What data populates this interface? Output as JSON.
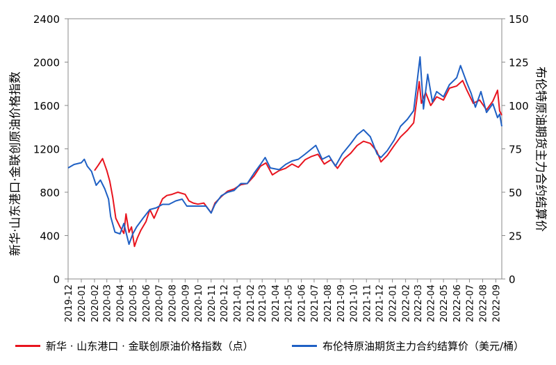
{
  "chart_data": {
    "type": "line",
    "title": "",
    "left_axis_label": "新华·山东港口·金联创原油价格指数",
    "right_axis_label": "布伦特原油期货主力合约结算价",
    "x_ticks": [
      "2019-12",
      "2020-01",
      "2020-02",
      "2020-03",
      "2020-04",
      "2020-05",
      "2020-06",
      "2020-07",
      "2020-08",
      "2020-09",
      "2020-10",
      "2020-11",
      "2020-12",
      "2021-01",
      "2021-02",
      "2021-03",
      "2021-04",
      "2021-05",
      "2021-06",
      "2021-07",
      "2021-08",
      "2021-09",
      "2021-10",
      "2021-11",
      "2021-12",
      "2022-01",
      "2022-02",
      "2022-03",
      "2022-04",
      "2022-05",
      "2022-06",
      "2022-07",
      "2022-08",
      "2022-09"
    ],
    "y_left_ticks": [
      "0",
      "400",
      "800",
      "1200",
      "1600",
      "2000",
      "2400"
    ],
    "y_left_range": [
      0,
      2400
    ],
    "y_right_ticks": [
      "0",
      "25",
      "50",
      "75",
      "100",
      "125",
      "150"
    ],
    "y_right_range": [
      0,
      150
    ],
    "grid": false,
    "legend_position": "bottom",
    "series": [
      {
        "name": "新华 · 山东港口 · 金联创原油价格指数（点）",
        "color": "#e8141e",
        "axis": "left",
        "points": [
          [
            "2020-02-01",
            1000
          ],
          [
            "2020-02-10",
            1050
          ],
          [
            "2020-02-20",
            1110
          ],
          [
            "2020-03-01",
            1000
          ],
          [
            "2020-03-08",
            900
          ],
          [
            "2020-03-15",
            750
          ],
          [
            "2020-03-22",
            560
          ],
          [
            "2020-04-01",
            480
          ],
          [
            "2020-04-10",
            420
          ],
          [
            "2020-04-15",
            600
          ],
          [
            "2020-04-22",
            430
          ],
          [
            "2020-04-28",
            480
          ],
          [
            "2020-05-05",
            300
          ],
          [
            "2020-05-12",
            380
          ],
          [
            "2020-05-20",
            450
          ],
          [
            "2020-06-01",
            530
          ],
          [
            "2020-06-10",
            640
          ],
          [
            "2020-06-20",
            560
          ],
          [
            "2020-07-01",
            660
          ],
          [
            "2020-07-10",
            740
          ],
          [
            "2020-07-20",
            770
          ],
          [
            "2020-08-01",
            780
          ],
          [
            "2020-08-15",
            800
          ],
          [
            "2020-09-01",
            780
          ],
          [
            "2020-09-10",
            720
          ],
          [
            "2020-09-20",
            700
          ],
          [
            "2020-10-01",
            690
          ],
          [
            "2020-10-15",
            700
          ],
          [
            "2020-11-01",
            610
          ],
          [
            "2020-11-10",
            700
          ],
          [
            "2020-11-25",
            760
          ],
          [
            "2020-12-10",
            810
          ],
          [
            "2020-12-25",
            830
          ],
          [
            "2021-01-10",
            870
          ],
          [
            "2021-01-25",
            880
          ],
          [
            "2021-02-10",
            950
          ],
          [
            "2021-02-25",
            1040
          ],
          [
            "2021-03-10",
            1070
          ],
          [
            "2021-03-25",
            960
          ],
          [
            "2021-04-10",
            1000
          ],
          [
            "2021-04-25",
            1020
          ],
          [
            "2021-05-10",
            1060
          ],
          [
            "2021-05-25",
            1030
          ],
          [
            "2021-06-10",
            1100
          ],
          [
            "2021-06-25",
            1130
          ],
          [
            "2021-07-10",
            1150
          ],
          [
            "2021-07-25",
            1060
          ],
          [
            "2021-08-10",
            1100
          ],
          [
            "2021-08-25",
            1020
          ],
          [
            "2021-09-10",
            1110
          ],
          [
            "2021-09-25",
            1160
          ],
          [
            "2021-10-10",
            1230
          ],
          [
            "2021-10-25",
            1270
          ],
          [
            "2021-11-10",
            1250
          ],
          [
            "2021-11-25",
            1180
          ],
          [
            "2021-12-05",
            1080
          ],
          [
            "2021-12-20",
            1140
          ],
          [
            "2022-01-05",
            1230
          ],
          [
            "2022-01-20",
            1310
          ],
          [
            "2022-02-05",
            1370
          ],
          [
            "2022-02-20",
            1440
          ],
          [
            "2022-03-05",
            1820
          ],
          [
            "2022-03-10",
            1620
          ],
          [
            "2022-03-20",
            1720
          ],
          [
            "2022-04-01",
            1600
          ],
          [
            "2022-04-15",
            1680
          ],
          [
            "2022-05-01",
            1650
          ],
          [
            "2022-05-15",
            1760
          ],
          [
            "2022-06-01",
            1780
          ],
          [
            "2022-06-15",
            1830
          ],
          [
            "2022-06-25",
            1740
          ],
          [
            "2022-07-10",
            1620
          ],
          [
            "2022-07-25",
            1650
          ],
          [
            "2022-08-10",
            1560
          ],
          [
            "2022-08-25",
            1640
          ],
          [
            "2022-09-05",
            1740
          ],
          [
            "2022-09-10",
            1550
          ],
          [
            "2022-09-15",
            1510
          ]
        ]
      },
      {
        "name": "布伦特原油期货主力合约结算价（美元/桶）",
        "color": "#1f60c4",
        "axis": "right",
        "points": [
          [
            "2019-12-01",
            64
          ],
          [
            "2019-12-15",
            66
          ],
          [
            "2020-01-01",
            67
          ],
          [
            "2020-01-08",
            69
          ],
          [
            "2020-01-15",
            65
          ],
          [
            "2020-01-25",
            62
          ],
          [
            "2020-02-05",
            54
          ],
          [
            "2020-02-15",
            57
          ],
          [
            "2020-02-25",
            52
          ],
          [
            "2020-03-05",
            46
          ],
          [
            "2020-03-10",
            36
          ],
          [
            "2020-03-20",
            27
          ],
          [
            "2020-04-01",
            26
          ],
          [
            "2020-04-10",
            32
          ],
          [
            "2020-04-22",
            20
          ],
          [
            "2020-05-01",
            26
          ],
          [
            "2020-05-10",
            30
          ],
          [
            "2020-05-25",
            35
          ],
          [
            "2020-06-10",
            40
          ],
          [
            "2020-06-25",
            41
          ],
          [
            "2020-07-10",
            43
          ],
          [
            "2020-07-25",
            43
          ],
          [
            "2020-08-10",
            45
          ],
          [
            "2020-08-25",
            46
          ],
          [
            "2020-09-05",
            42
          ],
          [
            "2020-09-20",
            42
          ],
          [
            "2020-10-05",
            42
          ],
          [
            "2020-10-20",
            42
          ],
          [
            "2020-11-01",
            38
          ],
          [
            "2020-11-10",
            43
          ],
          [
            "2020-11-25",
            48
          ],
          [
            "2020-12-10",
            50
          ],
          [
            "2020-12-25",
            51
          ],
          [
            "2021-01-10",
            55
          ],
          [
            "2021-01-25",
            55
          ],
          [
            "2021-02-10",
            61
          ],
          [
            "2021-02-25",
            66
          ],
          [
            "2021-03-08",
            70
          ],
          [
            "2021-03-20",
            64
          ],
          [
            "2021-04-10",
            63
          ],
          [
            "2021-04-25",
            66
          ],
          [
            "2021-05-10",
            68
          ],
          [
            "2021-05-25",
            69
          ],
          [
            "2021-06-10",
            72
          ],
          [
            "2021-06-25",
            75
          ],
          [
            "2021-07-05",
            77
          ],
          [
            "2021-07-20",
            69
          ],
          [
            "2021-08-05",
            71
          ],
          [
            "2021-08-20",
            65
          ],
          [
            "2021-09-05",
            72
          ],
          [
            "2021-09-25",
            78
          ],
          [
            "2021-10-10",
            83
          ],
          [
            "2021-10-25",
            86
          ],
          [
            "2021-11-10",
            82
          ],
          [
            "2021-11-26",
            72
          ],
          [
            "2021-12-05",
            70
          ],
          [
            "2021-12-20",
            74
          ],
          [
            "2022-01-05",
            80
          ],
          [
            "2022-01-20",
            88
          ],
          [
            "2022-02-05",
            92
          ],
          [
            "2022-02-20",
            97
          ],
          [
            "2022-03-07",
            128
          ],
          [
            "2022-03-15",
            98
          ],
          [
            "2022-03-25",
            118
          ],
          [
            "2022-04-05",
            102
          ],
          [
            "2022-04-15",
            108
          ],
          [
            "2022-05-01",
            105
          ],
          [
            "2022-05-15",
            112
          ],
          [
            "2022-06-01",
            116
          ],
          [
            "2022-06-10",
            123
          ],
          [
            "2022-06-25",
            113
          ],
          [
            "2022-07-05",
            107
          ],
          [
            "2022-07-15",
            99
          ],
          [
            "2022-07-28",
            108
          ],
          [
            "2022-08-10",
            96
          ],
          [
            "2022-08-25",
            101
          ],
          [
            "2022-09-05",
            93
          ],
          [
            "2022-09-10",
            95
          ],
          [
            "2022-09-15",
            88
          ]
        ]
      }
    ]
  }
}
